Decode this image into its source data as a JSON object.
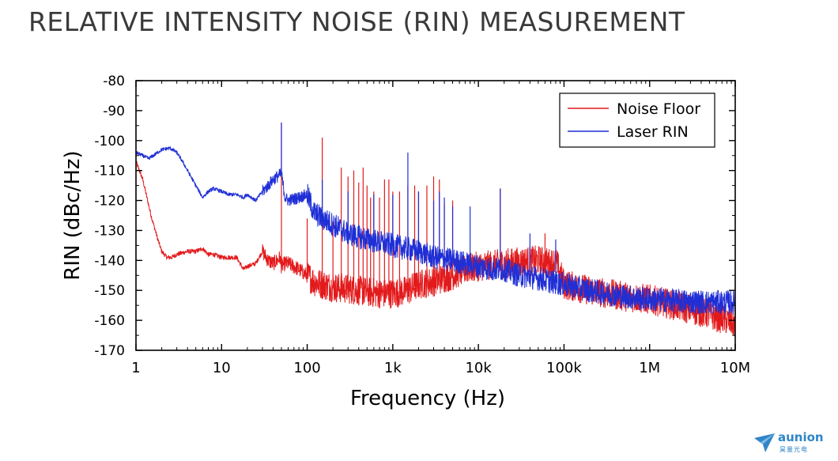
{
  "page": {
    "title": "RELATIVE INTENSITY NOISE (RIN) MEASUREMENT"
  },
  "brand": {
    "name": "aunion",
    "subtitle": "昊量光电",
    "color": "#2f86c8"
  },
  "chart_data": {
    "type": "line",
    "title": "",
    "xlabel": "Frequency (Hz)",
    "ylabel": "RIN (dBc/Hz)",
    "xscale": "log",
    "xlim": [
      1,
      10000000
    ],
    "ylim": [
      -170,
      -80
    ],
    "xticks": [
      1,
      10,
      100,
      1000,
      10000,
      100000,
      1000000,
      10000000
    ],
    "xtick_labels": [
      "1",
      "10",
      "100",
      "1k",
      "10k",
      "100k",
      "1M",
      "10M"
    ],
    "yticks": [
      -80,
      -90,
      -100,
      -110,
      -120,
      -130,
      -140,
      -150,
      -160,
      -170
    ],
    "ytick_labels": [
      "-80",
      "-90",
      "-100",
      "-110",
      "-120",
      "-130",
      "-140",
      "-150",
      "-160",
      "-170"
    ],
    "grid": false,
    "legend_position": "top-right",
    "series": [
      {
        "name": "Noise Floor",
        "color": "#e31a1c",
        "x": [
          1,
          1.2,
          1.5,
          1.8,
          2,
          2.3,
          2.6,
          3,
          4,
          5,
          6,
          7,
          8,
          10,
          12,
          15,
          18,
          20,
          25,
          30,
          35,
          40,
          45,
          48,
          50,
          55,
          60,
          80,
          100,
          120,
          150,
          200,
          300,
          500,
          700,
          1000,
          1500,
          2000,
          3000,
          5000,
          7000,
          10000,
          15000,
          20000,
          30000,
          50000,
          70000,
          80000,
          100000,
          200000,
          500000,
          1000000,
          2000000,
          5000000,
          10000000
        ],
        "y": [
          -107,
          -113,
          -125,
          -133,
          -137,
          -139,
          -139,
          -138,
          -137,
          -137,
          -136,
          -138,
          -138,
          -139,
          -139,
          -139,
          -143,
          -142,
          -141,
          -137,
          -140,
          -141,
          -140,
          -139,
          -142,
          -141,
          -141,
          -143,
          -145,
          -147,
          -148,
          -149,
          -149.5,
          -150.5,
          -151,
          -151,
          -150,
          -148,
          -147,
          -145,
          -143,
          -142,
          -141.5,
          -141,
          -140.5,
          -140,
          -141,
          -140,
          -148,
          -150,
          -152,
          -153,
          -155,
          -158,
          -161
        ]
      },
      {
        "name": "Laser RIN",
        "color": "#1f2fd6",
        "x": [
          1,
          1.2,
          1.4,
          1.6,
          2,
          2.5,
          3,
          3.5,
          4,
          5,
          6,
          7,
          8,
          10,
          12,
          15,
          18,
          20,
          25,
          30,
          35,
          40,
          45,
          50,
          55,
          60,
          80,
          100,
          120,
          150,
          200,
          300,
          500,
          1000,
          2000,
          3000,
          5000,
          10000,
          15000,
          20000,
          30000,
          50000,
          70000,
          100000,
          200000,
          500000,
          1000000,
          2000000,
          5000000,
          10000000
        ],
        "y": [
          -104,
          -105,
          -106,
          -105,
          -103,
          -102.5,
          -104,
          -107,
          -110,
          -115,
          -119,
          -117,
          -116,
          -117,
          -118,
          -118,
          -119,
          -118,
          -120,
          -117,
          -115,
          -113,
          -112,
          -111,
          -119,
          -120,
          -119,
          -118,
          -124,
          -126,
          -128,
          -131,
          -133,
          -135,
          -137,
          -139,
          -140,
          -142,
          -143,
          -143,
          -145,
          -146,
          -147,
          -148,
          -150,
          -152,
          -153,
          -153.5,
          -154,
          -154
        ]
      }
    ],
    "spikes_noise_floor": {
      "x": [
        50,
        100,
        150,
        200,
        250,
        300,
        350,
        400,
        450,
        500,
        550,
        600,
        700,
        800,
        900,
        1000,
        1200,
        1500,
        1800,
        2000,
        2500,
        3000,
        3500,
        4000,
        5000,
        18000,
        60000
      ],
      "y": [
        -94,
        -126,
        -99,
        -127,
        -109,
        -112,
        -110,
        -114,
        -109,
        -115,
        -119,
        -117,
        -119,
        -113,
        -113,
        -117,
        -117,
        -115,
        -115,
        -117,
        -115,
        -112,
        -113,
        -121,
        -120,
        -116,
        -131
      ]
    },
    "spikes_laser_rin": {
      "x": [
        50,
        150,
        300,
        600,
        1000,
        1500,
        2000,
        3000,
        3500,
        4000,
        5000,
        8000,
        18000,
        40000,
        80000
      ],
      "y": [
        -94,
        -113,
        -117,
        -118,
        -118,
        -104,
        -117,
        -120,
        -117,
        -119,
        -122,
        -122,
        -116,
        -131,
        -133
      ]
    }
  }
}
